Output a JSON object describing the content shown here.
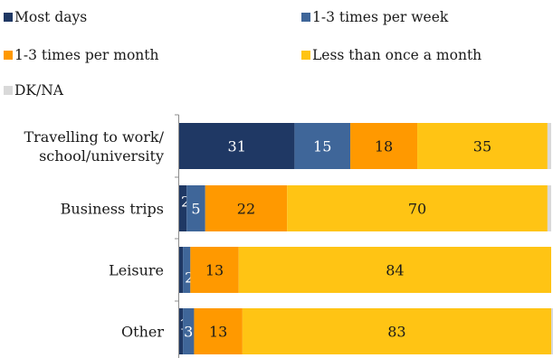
{
  "chart_data": {
    "type": "bar",
    "orientation": "horizontal",
    "stacked": true,
    "title": "",
    "xlabel": "",
    "ylabel": "",
    "xlim": [
      0,
      100
    ],
    "grid": false,
    "legend_position": "top",
    "categories": [
      [
        "Travelling to work/",
        "school/university"
      ],
      [
        "Business trips"
      ],
      [
        "Leisure"
      ],
      [
        "Other"
      ]
    ],
    "series": [
      {
        "name": "Most days",
        "color": "#1f3864",
        "label_color": "#ffffff",
        "values": [
          31,
          2,
          1,
          1
        ],
        "labels": [
          "31",
          "2",
          "",
          "1"
        ]
      },
      {
        "name": "1-3 times per week",
        "color": "#3f6699",
        "label_color": "#ffffff",
        "values": [
          15,
          5,
          2,
          3
        ],
        "labels": [
          "15",
          "5",
          "2",
          "3"
        ]
      },
      {
        "name": "1-3 times per month",
        "color": "#ff9900",
        "label_color": "#1a1a1a",
        "values": [
          18,
          22,
          13,
          13
        ],
        "labels": [
          "18",
          "22",
          "13",
          "13"
        ]
      },
      {
        "name": "Less than once a month",
        "color": "#ffc414",
        "label_color": "#1a1a1a",
        "values": [
          35,
          70,
          84,
          83
        ],
        "labels": [
          "35",
          "70",
          "84",
          "83"
        ]
      },
      {
        "name": "DK/NA",
        "color": "#d9d9d9",
        "label_color": "#1a1a1a",
        "values": [
          1,
          1,
          0,
          0.5
        ],
        "labels": [
          "",
          "",
          "",
          ""
        ]
      }
    ]
  }
}
